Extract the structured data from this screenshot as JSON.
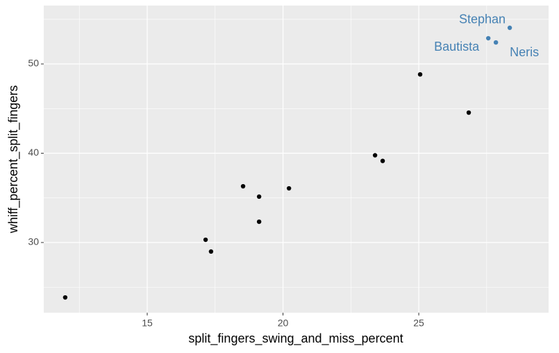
{
  "chart_data": {
    "type": "scatter",
    "x_label": "split_fingers_swing_and_miss_percent",
    "y_label": "whiff_percent_split_fingers",
    "xlim": [
      11.19,
      29.78
    ],
    "ylim": [
      22.14,
      56.54
    ],
    "xticks": [
      15,
      20,
      25
    ],
    "yticks": [
      30,
      40,
      50
    ],
    "x_minor_grid": [
      12.5,
      17.5,
      22.5,
      27.5
    ],
    "y_minor_grid": [
      25,
      35,
      45,
      55
    ],
    "grid": true,
    "series": [
      {
        "color": "#000000",
        "x": [
          11.98,
          17.15,
          17.35,
          18.53,
          19.12,
          19.12,
          20.22,
          23.39,
          23.67,
          25.05,
          26.84
        ],
        "y": [
          23.85,
          30.31,
          28.99,
          36.3,
          35.14,
          32.33,
          36.07,
          39.77,
          39.14,
          48.83,
          44.55
        ]
      },
      {
        "color": "#4682b4",
        "x": [
          27.56,
          27.84,
          28.35
        ],
        "y": [
          52.88,
          52.41,
          54.05
        ],
        "labels": [
          "Bautista",
          "Neris",
          "Stephan"
        ]
      }
    ]
  }
}
